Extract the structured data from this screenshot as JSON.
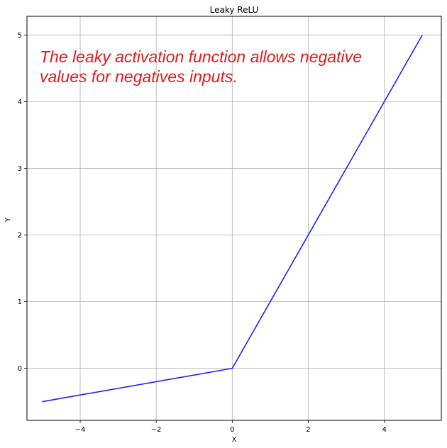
{
  "chart_data": {
    "type": "line",
    "title": "Leaky ReLU",
    "xlabel": "X",
    "ylabel": "Y",
    "xlim": [
      -5.4,
      5.5
    ],
    "ylim": [
      -0.78,
      5.28
    ],
    "xticks": [
      -4,
      -2,
      0,
      2,
      4
    ],
    "xtick_labels": [
      "−4",
      "−2",
      "0",
      "2",
      "4"
    ],
    "yticks": [
      0,
      1,
      2,
      3,
      4,
      5
    ],
    "ytick_labels": [
      "0",
      "1",
      "2",
      "3",
      "4",
      "5"
    ],
    "grid": true,
    "series": [
      {
        "color": "#1f1fff",
        "x": [
          -5,
          0,
          5
        ],
        "y": [
          -0.5,
          0,
          5
        ]
      }
    ],
    "annotation": {
      "lines": [
        "The leaky activation function allows negative",
        "values for negatives inputs."
      ],
      "color": "#e31a1c"
    }
  }
}
